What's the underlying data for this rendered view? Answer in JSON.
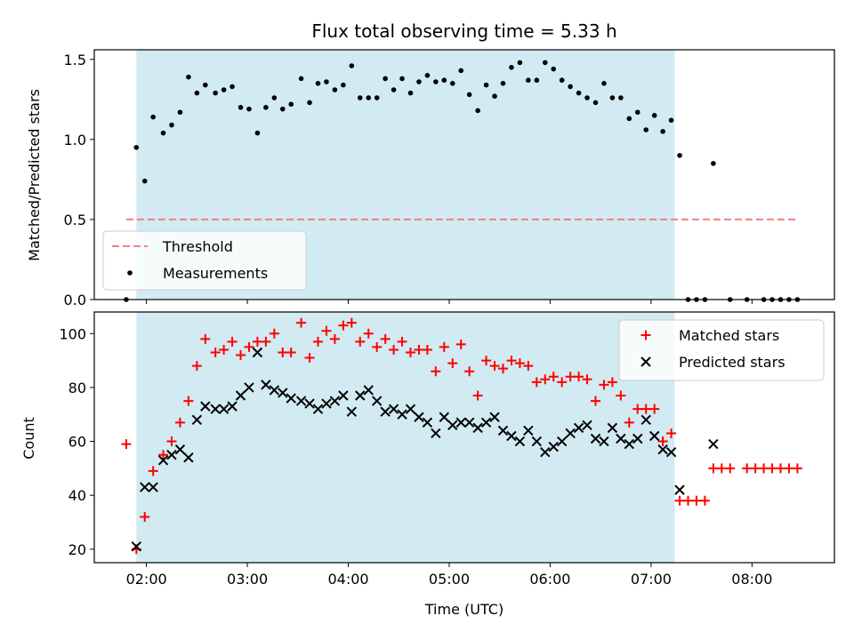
{
  "chart_data": [
    {
      "type": "scatter",
      "title": "Flux total observing time = 5.33 h",
      "xlabel": "",
      "ylabel": "Matched/Predicted stars",
      "xlim": [
        "01:29",
        "08:49"
      ],
      "ylim": [
        0,
        1.56
      ],
      "yticks": [
        0.0,
        0.5,
        1.0,
        1.5
      ],
      "ytick_labels": [
        "0.0",
        "0.5",
        "1.0",
        "1.5"
      ],
      "shaded_span": {
        "start": "01:54",
        "end": "07:14",
        "color": "#add8e6"
      },
      "legend": {
        "position": "lower-left",
        "entries": [
          "Threshold",
          "Measurements"
        ]
      },
      "series": [
        {
          "name": "Threshold",
          "kind": "line",
          "style": "dashed",
          "color": "#f08080",
          "points": [
            [
              "01:48",
              0.5
            ],
            [
              "08:27",
              0.5
            ]
          ]
        },
        {
          "name": "Measurements",
          "kind": "scatter",
          "marker": "dot",
          "color": "#000000",
          "points": [
            [
              "01:48",
              0.0
            ],
            [
              "01:54",
              0.95
            ],
            [
              "01:59",
              0.74
            ],
            [
              "02:04",
              1.14
            ],
            [
              "02:10",
              1.04
            ],
            [
              "02:15",
              1.09
            ],
            [
              "02:20",
              1.17
            ],
            [
              "02:25",
              1.39
            ],
            [
              "02:30",
              1.29
            ],
            [
              "02:35",
              1.34
            ],
            [
              "02:41",
              1.29
            ],
            [
              "02:46",
              1.31
            ],
            [
              "02:51",
              1.33
            ],
            [
              "02:56",
              1.2
            ],
            [
              "03:01",
              1.19
            ],
            [
              "03:06",
              1.04
            ],
            [
              "03:11",
              1.2
            ],
            [
              "03:16",
              1.26
            ],
            [
              "03:21",
              1.19
            ],
            [
              "03:26",
              1.22
            ],
            [
              "03:32",
              1.38
            ],
            [
              "03:37",
              1.23
            ],
            [
              "03:42",
              1.35
            ],
            [
              "03:47",
              1.36
            ],
            [
              "03:52",
              1.31
            ],
            [
              "03:57",
              1.34
            ],
            [
              "04:02",
              1.46
            ],
            [
              "04:07",
              1.26
            ],
            [
              "04:12",
              1.26
            ],
            [
              "04:17",
              1.26
            ],
            [
              "04:22",
              1.38
            ],
            [
              "04:27",
              1.31
            ],
            [
              "04:32",
              1.38
            ],
            [
              "04:37",
              1.29
            ],
            [
              "04:42",
              1.36
            ],
            [
              "04:47",
              1.4
            ],
            [
              "04:52",
              1.36
            ],
            [
              "04:57",
              1.37
            ],
            [
              "05:02",
              1.35
            ],
            [
              "05:07",
              1.43
            ],
            [
              "05:12",
              1.28
            ],
            [
              "05:17",
              1.18
            ],
            [
              "05:22",
              1.34
            ],
            [
              "05:27",
              1.27
            ],
            [
              "05:32",
              1.35
            ],
            [
              "05:37",
              1.45
            ],
            [
              "05:42",
              1.48
            ],
            [
              "05:47",
              1.37
            ],
            [
              "05:52",
              1.37
            ],
            [
              "05:57",
              1.48
            ],
            [
              "06:02",
              1.44
            ],
            [
              "06:07",
              1.37
            ],
            [
              "06:12",
              1.33
            ],
            [
              "06:17",
              1.29
            ],
            [
              "06:22",
              1.26
            ],
            [
              "06:27",
              1.23
            ],
            [
              "06:32",
              1.35
            ],
            [
              "06:37",
              1.26
            ],
            [
              "06:42",
              1.26
            ],
            [
              "06:47",
              1.13
            ],
            [
              "06:52",
              1.17
            ],
            [
              "06:57",
              1.06
            ],
            [
              "07:02",
              1.15
            ],
            [
              "07:07",
              1.05
            ],
            [
              "07:12",
              1.12
            ],
            [
              "07:17",
              0.9
            ],
            [
              "07:22",
              0.0
            ],
            [
              "07:27",
              0.0
            ],
            [
              "07:32",
              0.0
            ],
            [
              "07:37",
              0.85
            ],
            [
              "07:47",
              0.0
            ],
            [
              "07:57",
              0.0
            ],
            [
              "08:07",
              0.0
            ],
            [
              "08:12",
              0.0
            ],
            [
              "08:17",
              0.0
            ],
            [
              "08:22",
              0.0
            ],
            [
              "08:27",
              0.0
            ]
          ]
        }
      ]
    },
    {
      "type": "scatter",
      "title": "",
      "xlabel": "Time (UTC)",
      "ylabel": "Count",
      "xlim": [
        "01:29",
        "08:49"
      ],
      "ylim": [
        15,
        108
      ],
      "xticks": [
        "02:00",
        "03:00",
        "04:00",
        "05:00",
        "06:00",
        "07:00",
        "08:00"
      ],
      "yticks": [
        20,
        40,
        60,
        80,
        100
      ],
      "ytick_labels": [
        "20",
        "40",
        "60",
        "80",
        "100"
      ],
      "shaded_span": {
        "start": "01:54",
        "end": "07:14",
        "color": "#add8e6"
      },
      "legend": {
        "position": "top-right",
        "entries": [
          "Matched stars",
          "Predicted stars"
        ]
      },
      "series": [
        {
          "name": "Matched stars",
          "marker": "plus",
          "color": "#ff0000",
          "points": [
            [
              "01:48",
              59
            ],
            [
              "01:54",
              20
            ],
            [
              "01:59",
              32
            ],
            [
              "02:04",
              49
            ],
            [
              "02:10",
              55
            ],
            [
              "02:15",
              60
            ],
            [
              "02:20",
              67
            ],
            [
              "02:25",
              75
            ],
            [
              "02:30",
              88
            ],
            [
              "02:35",
              98
            ],
            [
              "02:41",
              93
            ],
            [
              "02:46",
              94
            ],
            [
              "02:51",
              97
            ],
            [
              "02:56",
              92
            ],
            [
              "03:01",
              95
            ],
            [
              "03:06",
              97
            ],
            [
              "03:11",
              97
            ],
            [
              "03:16",
              100
            ],
            [
              "03:21",
              93
            ],
            [
              "03:26",
              93
            ],
            [
              "03:32",
              104
            ],
            [
              "03:37",
              91
            ],
            [
              "03:42",
              97
            ],
            [
              "03:47",
              101
            ],
            [
              "03:52",
              98
            ],
            [
              "03:57",
              103
            ],
            [
              "04:02",
              104
            ],
            [
              "04:07",
              97
            ],
            [
              "04:12",
              100
            ],
            [
              "04:17",
              95
            ],
            [
              "04:22",
              98
            ],
            [
              "04:27",
              94
            ],
            [
              "04:32",
              97
            ],
            [
              "04:37",
              93
            ],
            [
              "04:42",
              94
            ],
            [
              "04:47",
              94
            ],
            [
              "04:52",
              86
            ],
            [
              "04:57",
              95
            ],
            [
              "05:02",
              89
            ],
            [
              "05:07",
              96
            ],
            [
              "05:12",
              86
            ],
            [
              "05:17",
              77
            ],
            [
              "05:22",
              90
            ],
            [
              "05:27",
              88
            ],
            [
              "05:32",
              87
            ],
            [
              "05:37",
              90
            ],
            [
              "05:42",
              89
            ],
            [
              "05:47",
              88
            ],
            [
              "05:52",
              82
            ],
            [
              "05:57",
              83
            ],
            [
              "06:02",
              84
            ],
            [
              "06:07",
              82
            ],
            [
              "06:12",
              84
            ],
            [
              "06:17",
              84
            ],
            [
              "06:22",
              83
            ],
            [
              "06:27",
              75
            ],
            [
              "06:32",
              81
            ],
            [
              "06:37",
              82
            ],
            [
              "06:42",
              77
            ],
            [
              "06:47",
              67
            ],
            [
              "06:52",
              72
            ],
            [
              "06:57",
              72
            ],
            [
              "07:02",
              72
            ],
            [
              "07:07",
              60
            ],
            [
              "07:12",
              63
            ],
            [
              "07:17",
              38
            ],
            [
              "07:22",
              38
            ],
            [
              "07:27",
              38
            ],
            [
              "07:32",
              38
            ],
            [
              "07:37",
              50
            ],
            [
              "07:42",
              50
            ],
            [
              "07:47",
              50
            ],
            [
              "07:57",
              50
            ],
            [
              "08:02",
              50
            ],
            [
              "08:07",
              50
            ],
            [
              "08:12",
              50
            ],
            [
              "08:17",
              50
            ],
            [
              "08:22",
              50
            ],
            [
              "08:27",
              50
            ]
          ]
        },
        {
          "name": "Predicted stars",
          "marker": "x",
          "color": "#000000",
          "points": [
            [
              "01:54",
              21
            ],
            [
              "01:59",
              43
            ],
            [
              "02:04",
              43
            ],
            [
              "02:10",
              53
            ],
            [
              "02:15",
              55
            ],
            [
              "02:20",
              57
            ],
            [
              "02:25",
              54
            ],
            [
              "02:30",
              68
            ],
            [
              "02:35",
              73
            ],
            [
              "02:41",
              72
            ],
            [
              "02:46",
              72
            ],
            [
              "02:51",
              73
            ],
            [
              "02:56",
              77
            ],
            [
              "03:01",
              80
            ],
            [
              "03:06",
              93
            ],
            [
              "03:11",
              81
            ],
            [
              "03:16",
              79
            ],
            [
              "03:21",
              78
            ],
            [
              "03:26",
              76
            ],
            [
              "03:32",
              75
            ],
            [
              "03:37",
              74
            ],
            [
              "03:42",
              72
            ],
            [
              "03:47",
              74
            ],
            [
              "03:52",
              75
            ],
            [
              "03:57",
              77
            ],
            [
              "04:02",
              71
            ],
            [
              "04:07",
              77
            ],
            [
              "04:12",
              79
            ],
            [
              "04:17",
              75
            ],
            [
              "04:22",
              71
            ],
            [
              "04:27",
              72
            ],
            [
              "04:32",
              70
            ],
            [
              "04:37",
              72
            ],
            [
              "04:42",
              69
            ],
            [
              "04:47",
              67
            ],
            [
              "04:52",
              63
            ],
            [
              "04:57",
              69
            ],
            [
              "05:02",
              66
            ],
            [
              "05:07",
              67
            ],
            [
              "05:12",
              67
            ],
            [
              "05:17",
              65
            ],
            [
              "05:22",
              67
            ],
            [
              "05:27",
              69
            ],
            [
              "05:32",
              64
            ],
            [
              "05:37",
              62
            ],
            [
              "05:42",
              60
            ],
            [
              "05:47",
              64
            ],
            [
              "05:52",
              60
            ],
            [
              "05:57",
              56
            ],
            [
              "06:02",
              58
            ],
            [
              "06:07",
              60
            ],
            [
              "06:12",
              63
            ],
            [
              "06:17",
              65
            ],
            [
              "06:22",
              66
            ],
            [
              "06:27",
              61
            ],
            [
              "06:32",
              60
            ],
            [
              "06:37",
              65
            ],
            [
              "06:42",
              61
            ],
            [
              "06:47",
              59
            ],
            [
              "06:52",
              61
            ],
            [
              "06:57",
              68
            ],
            [
              "07:02",
              62
            ],
            [
              "07:07",
              57
            ],
            [
              "07:12",
              56
            ],
            [
              "07:17",
              42
            ],
            [
              "07:37",
              59
            ]
          ]
        }
      ]
    }
  ]
}
